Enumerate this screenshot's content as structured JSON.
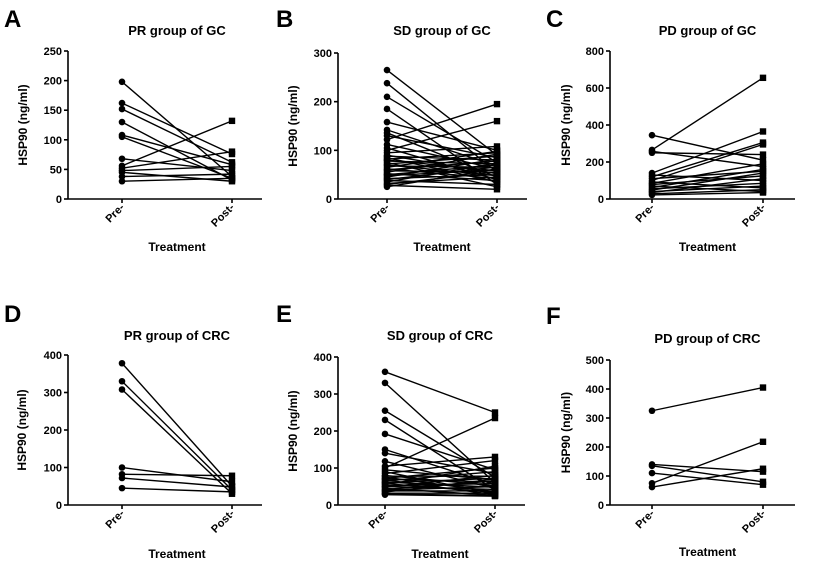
{
  "chart_data": [
    {
      "type": "line",
      "panel": "A",
      "title": "PR group of GC",
      "xlabel": "Treatment",
      "ylabel": "HSP90 (ng/ml)",
      "categories": [
        "Pre-",
        "Post-"
      ],
      "ylim": [
        0,
        250
      ],
      "yticks": [
        0,
        50,
        100,
        150,
        200,
        250
      ],
      "pairs": [
        [
          198,
          38
        ],
        [
          162,
          76
        ],
        [
          152,
          62
        ],
        [
          130,
          32
        ],
        [
          108,
          58
        ],
        [
          105,
          35
        ],
        [
          68,
          48
        ],
        [
          56,
          132
        ],
        [
          52,
          80
        ],
        [
          48,
          55
        ],
        [
          45,
          30
        ],
        [
          38,
          42
        ],
        [
          30,
          35
        ]
      ]
    },
    {
      "type": "line",
      "panel": "B",
      "title": "SD group of GC",
      "xlabel": "Treatment",
      "ylabel": "HSP90 (ng/ml)",
      "categories": [
        "Pre-",
        "Post-"
      ],
      "ylim": [
        0,
        300
      ],
      "yticks": [
        0,
        100,
        200,
        300
      ],
      "pairs": [
        [
          265,
          90
        ],
        [
          238,
          55
        ],
        [
          210,
          75
        ],
        [
          185,
          30
        ],
        [
          158,
          100
        ],
        [
          142,
          68
        ],
        [
          136,
          45
        ],
        [
          130,
          85
        ],
        [
          122,
          195
        ],
        [
          112,
          62
        ],
        [
          105,
          40
        ],
        [
          100,
          160
        ],
        [
          95,
          108
        ],
        [
          90,
          52
        ],
        [
          88,
          80
        ],
        [
          85,
          35
        ],
        [
          82,
          95
        ],
        [
          80,
          58
        ],
        [
          78,
          72
        ],
        [
          75,
          25
        ],
        [
          72,
          88
        ],
        [
          70,
          48
        ],
        [
          68,
          65
        ],
        [
          65,
          98
        ],
        [
          62,
          42
        ],
        [
          60,
          78
        ],
        [
          58,
          55
        ],
        [
          55,
          92
        ],
        [
          52,
          38
        ],
        [
          50,
          70
        ],
        [
          48,
          60
        ],
        [
          45,
          82
        ],
        [
          42,
          50
        ],
        [
          40,
          66
        ],
        [
          38,
          30
        ],
        [
          35,
          74
        ],
        [
          32,
          45
        ],
        [
          30,
          56
        ],
        [
          28,
          20
        ],
        [
          25,
          62
        ]
      ]
    },
    {
      "type": "line",
      "panel": "C",
      "title": "PD group of GC",
      "xlabel": "Treatment",
      "ylabel": "HSP90 (ng/ml)",
      "categories": [
        "Pre-",
        "Post-"
      ],
      "ylim": [
        0,
        800
      ],
      "yticks": [
        0,
        200,
        400,
        600,
        800
      ],
      "pairs": [
        [
          345,
          210
        ],
        [
          265,
          655
        ],
        [
          258,
          175
        ],
        [
          250,
          240
        ],
        [
          140,
          365
        ],
        [
          130,
          100
        ],
        [
          120,
          305
        ],
        [
          110,
          150
        ],
        [
          100,
          295
        ],
        [
          92,
          60
        ],
        [
          85,
          190
        ],
        [
          78,
          125
        ],
        [
          70,
          40
        ],
        [
          62,
          160
        ],
        [
          55,
          85
        ],
        [
          48,
          140
        ],
        [
          40,
          70
        ],
        [
          35,
          110
        ],
        [
          28,
          50
        ],
        [
          22,
          35
        ]
      ]
    },
    {
      "type": "line",
      "panel": "D",
      "title": "PR group of CRC",
      "xlabel": "Treatment",
      "ylabel": "HSP90 (ng/ml)",
      "categories": [
        "Pre-",
        "Post-"
      ],
      "ylim": [
        0,
        400
      ],
      "yticks": [
        0,
        100,
        200,
        300,
        400
      ],
      "pairs": [
        [
          378,
          50
        ],
        [
          330,
          40
        ],
        [
          308,
          30
        ],
        [
          100,
          62
        ],
        [
          82,
          78
        ],
        [
          72,
          48
        ],
        [
          45,
          35
        ]
      ]
    },
    {
      "type": "line",
      "panel": "E",
      "title": "SD group of CRC",
      "xlabel": "Treatment",
      "ylabel": "HSP90 (ng/ml)",
      "categories": [
        "Pre-",
        "Post-"
      ],
      "ylim": [
        0,
        400
      ],
      "yticks": [
        0,
        100,
        200,
        300,
        400
      ],
      "pairs": [
        [
          360,
          250
        ],
        [
          330,
          60
        ],
        [
          255,
          75
        ],
        [
          230,
          40
        ],
        [
          192,
          95
        ],
        [
          150,
          55
        ],
        [
          140,
          85
        ],
        [
          118,
          45
        ],
        [
          105,
          130
        ],
        [
          100,
          235
        ],
        [
          95,
          68
        ],
        [
          90,
          30
        ],
        [
          85,
          120
        ],
        [
          80,
          52
        ],
        [
          78,
          78
        ],
        [
          75,
          36
        ],
        [
          72,
          100
        ],
        [
          70,
          62
        ],
        [
          68,
          28
        ],
        [
          65,
          90
        ],
        [
          62,
          48
        ],
        [
          60,
          72
        ],
        [
          58,
          34
        ],
        [
          55,
          105
        ],
        [
          52,
          58
        ],
        [
          50,
          42
        ],
        [
          48,
          80
        ],
        [
          45,
          26
        ],
        [
          42,
          65
        ],
        [
          40,
          50
        ],
        [
          38,
          38
        ],
        [
          35,
          70
        ],
        [
          32,
          32
        ],
        [
          30,
          25
        ],
        [
          28,
          24
        ]
      ]
    },
    {
      "type": "line",
      "panel": "F",
      "title": "PD group of CRC",
      "xlabel": "Treatment",
      "ylabel": "HSP90 (ng/ml)",
      "categories": [
        "Pre-",
        "Post-"
      ],
      "ylim": [
        0,
        500
      ],
      "yticks": [
        0,
        100,
        200,
        300,
        400,
        500
      ],
      "pairs": [
        [
          325,
          405
        ],
        [
          140,
          115
        ],
        [
          135,
          80
        ],
        [
          110,
          70
        ],
        [
          75,
          218
        ],
        [
          62,
          125
        ]
      ]
    }
  ]
}
